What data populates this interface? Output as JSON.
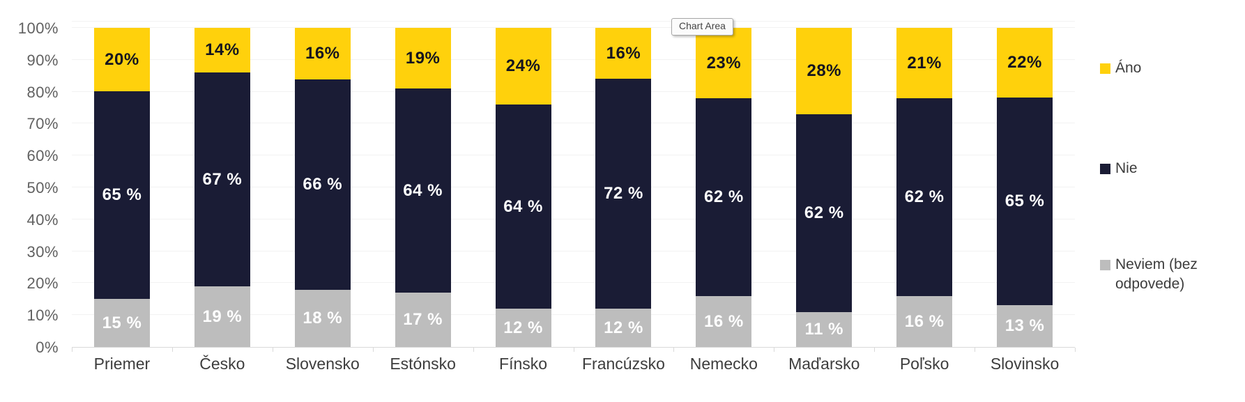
{
  "tooltip": {
    "label": "Chart Area"
  },
  "colors": {
    "ano": "#FFD10C",
    "nie": "#1A1C35",
    "neviem": "#BDBDBD",
    "gridline": "#F2F2F2",
    "axis_line": "#D9D9D9",
    "y_label_text": "#616161",
    "category_text": "#3D3D3D"
  },
  "chart_data": {
    "type": "bar",
    "stacked": true,
    "stacked_to_100": true,
    "title": "",
    "xlabel": "",
    "ylabel": "",
    "ylim": [
      0,
      100
    ],
    "grid": true,
    "legend_position": "right",
    "y_ticks": [
      "100%",
      "90%",
      "80%",
      "70%",
      "60%",
      "50%",
      "40%",
      "30%",
      "20%",
      "10%",
      "0%"
    ],
    "categories": [
      "Priemer",
      "Česko",
      "Slovensko",
      "Estónsko",
      "Fínsko",
      "Francúzsko",
      "Nemecko",
      "Maďarsko",
      "Poľsko",
      "Slovinsko"
    ],
    "series": [
      {
        "key": "ano",
        "name": "Áno",
        "color": "#FFD10C",
        "values": [
          20,
          14,
          16,
          19,
          24,
          16,
          23,
          28,
          21,
          22
        ],
        "labels": [
          "20%",
          "14%",
          "16%",
          "19%",
          "24%",
          "16%",
          "23%",
          "28%",
          "21%",
          "22%"
        ]
      },
      {
        "key": "nie",
        "name": "Nie",
        "color": "#1A1C35",
        "values": [
          65,
          67,
          66,
          64,
          64,
          72,
          62,
          62,
          62,
          65
        ],
        "labels": [
          "65 %",
          "67 %",
          "66 %",
          "64 %",
          "64 %",
          "72 %",
          "62 %",
          "62 %",
          "62 %",
          "65 %"
        ]
      },
      {
        "key": "neviem",
        "name": "Neviem (bez odpovede)",
        "color": "#BDBDBD",
        "values": [
          15,
          19,
          18,
          17,
          12,
          12,
          16,
          11,
          16,
          13
        ],
        "labels": [
          "15 %",
          "19 %",
          "18 %",
          "17 %",
          "12 %",
          "12 %",
          "16 %",
          "11 %",
          "16 %",
          "13 %"
        ]
      }
    ]
  },
  "legend": {
    "items": [
      {
        "key": "ano",
        "label": "Áno"
      },
      {
        "key": "nie",
        "label": "Nie"
      },
      {
        "key": "neviem",
        "label": "Neviem (bez odpovede)"
      }
    ]
  }
}
